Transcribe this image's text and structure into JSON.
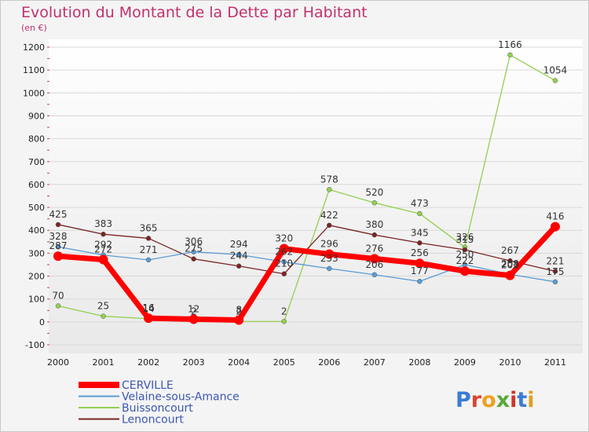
{
  "chart_data": {
    "type": "line",
    "title": "Evolution du Montant de la Dette par Habitant",
    "subtitle": "(en €)",
    "xlabel": "",
    "ylabel": "",
    "ylim": [
      -100,
      1200
    ],
    "y_ticks": [
      -100,
      0,
      100,
      200,
      300,
      400,
      500,
      600,
      700,
      800,
      900,
      1000,
      1100,
      1200
    ],
    "grid": "horizontal",
    "legend_placement": "bottom-left",
    "x": [
      "2000",
      "2001",
      "2002",
      "2003",
      "2004",
      "2005",
      "2006",
      "2007",
      "2008",
      "2009",
      "2010",
      "2011"
    ],
    "series": [
      {
        "name": "CERVILLE",
        "color": "#ff0000",
        "values": [
          287,
          272,
          16,
          12,
          8,
          320,
          296,
          276,
          256,
          222,
          203,
          416
        ]
      },
      {
        "name": "Velaine-sous-Amance",
        "color": "#5b9bd5",
        "values": [
          328,
          292,
          271,
          306,
          294,
          262,
          233,
          206,
          177,
          250,
          208,
          175
        ]
      },
      {
        "name": "Buissoncourt",
        "color": "#92d050",
        "values": [
          70,
          25,
          14,
          2,
          2,
          2,
          578,
          520,
          473,
          326,
          1166,
          1054
        ]
      },
      {
        "name": "Lenoncourt",
        "color": "#7b2424",
        "values": [
          425,
          383,
          365,
          275,
          244,
          210,
          422,
          380,
          345,
          315,
          267,
          221
        ]
      }
    ]
  },
  "brand": {
    "text": "Proxiti"
  }
}
